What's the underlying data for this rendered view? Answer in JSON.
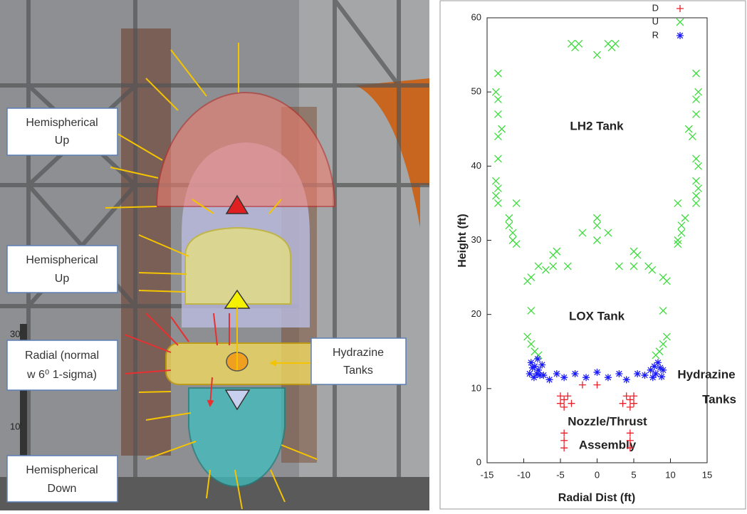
{
  "illustration": {
    "labels": [
      [
        "Hemispherical",
        "Up"
      ],
      [
        "Hemispherical",
        "Up"
      ],
      [
        "Radial (normal",
        "w 6⁰ 1-sigma)"
      ],
      [
        "Hydrazine",
        "Tanks"
      ],
      [
        "Hemispherical",
        "Down"
      ]
    ],
    "ruler": [
      "30'",
      "10'"
    ]
  },
  "chart_data": {
    "type": "scatter",
    "x_label": "Radial Dist (ft)",
    "y_label": "Height (ft)",
    "xlim": [
      -15,
      15
    ],
    "xticks": [
      -15,
      -10,
      -5,
      0,
      5,
      10,
      15
    ],
    "ylim": [
      0,
      60
    ],
    "yticks": [
      0,
      10,
      20,
      30,
      40,
      50,
      60
    ],
    "grid": false,
    "legend": "upper right",
    "annotations": [
      [
        "LH2 Tank"
      ],
      [
        "LOX Tank"
      ],
      [
        "Hydrazine",
        "Tanks"
      ],
      [
        "Nozzle/Thrust",
        "Assembly"
      ]
    ],
    "series": [
      {
        "name": "D",
        "color": "#e8202a",
        "marker": "plus",
        "x": [
          -5,
          -4.5,
          -4,
          -5,
          -3.5,
          -4.5,
          -2,
          0,
          4,
          4.5,
          5,
          3.5,
          5,
          4.5,
          -4.5,
          -4.5,
          -4.5,
          4.5,
          4.5,
          4.5
        ],
        "values": [
          9,
          8.5,
          9,
          8,
          8,
          7.5,
          10.5,
          10.5,
          9,
          8.5,
          9,
          8,
          8,
          7.5,
          4,
          3,
          2,
          4,
          3,
          2
        ]
      },
      {
        "name": "U",
        "color": "#3ddc3d",
        "marker": "cross",
        "x": [
          -3.5,
          -3,
          -2.5,
          1.5,
          2,
          2.5,
          0,
          -13.5,
          -13.8,
          -13.5,
          -13.5,
          -13.5,
          -13,
          -13.5,
          -13.8,
          -13.5,
          -13.8,
          -13.5,
          -12,
          -12,
          -11.5,
          -11.5,
          -11,
          -11,
          -9,
          -9.5,
          -9,
          -8,
          -7,
          -6,
          -6,
          -5.5,
          -4,
          -2,
          0,
          0,
          0,
          1.5,
          3,
          5,
          5.5,
          5,
          7,
          7.5,
          9,
          9.5,
          9,
          11,
          11,
          11,
          11.5,
          11.5,
          12,
          12.5,
          13,
          13.5,
          13.8,
          13.5,
          13.5,
          13.5,
          13.8,
          13.5,
          13.8,
          13.5,
          13.5,
          -9.5,
          -9,
          -8.5,
          -8,
          9.5,
          9,
          8.5,
          8
        ],
        "values": [
          56.5,
          56,
          56.5,
          56.5,
          56,
          56.5,
          55,
          52.5,
          50,
          49,
          47,
          44,
          45,
          41,
          38,
          37,
          36,
          35,
          33,
          32,
          31,
          30,
          35,
          29.5,
          25,
          24.5,
          20.5,
          26.5,
          26,
          26.5,
          28,
          28.5,
          26.5,
          31,
          33,
          32,
          30,
          31,
          26.5,
          28.5,
          28,
          26.5,
          26.5,
          26,
          25,
          24.5,
          20.5,
          35,
          30,
          29.5,
          31,
          32,
          33,
          45,
          44,
          52.5,
          50,
          49,
          47,
          41,
          40,
          38,
          37,
          36,
          35,
          17,
          16,
          15,
          14.5,
          17,
          16,
          15,
          14.5
        ]
      },
      {
        "name": "R",
        "color": "#1a1aff",
        "marker": "star",
        "x": [
          -9,
          -8.8,
          -8.5,
          -8.2,
          -8,
          -7.8,
          -7.5,
          -9.2,
          -8.6,
          -8.1,
          -7.3,
          -6.5,
          -5.5,
          -4.5,
          -3,
          -1.5,
          0,
          1.5,
          3,
          4,
          5.5,
          6.5,
          7.3,
          7.8,
          8,
          8.3,
          8.6,
          9,
          7.6,
          8.8
        ],
        "values": [
          13.5,
          12.8,
          13,
          12,
          12.5,
          11.8,
          13.2,
          12,
          11.5,
          14,
          11.8,
          11.2,
          12,
          11.5,
          12,
          11.5,
          12.2,
          11.5,
          12,
          11.2,
          12,
          11.8,
          12.5,
          13,
          12,
          13.5,
          12.8,
          12.5,
          11.5,
          11.6
        ]
      }
    ]
  }
}
